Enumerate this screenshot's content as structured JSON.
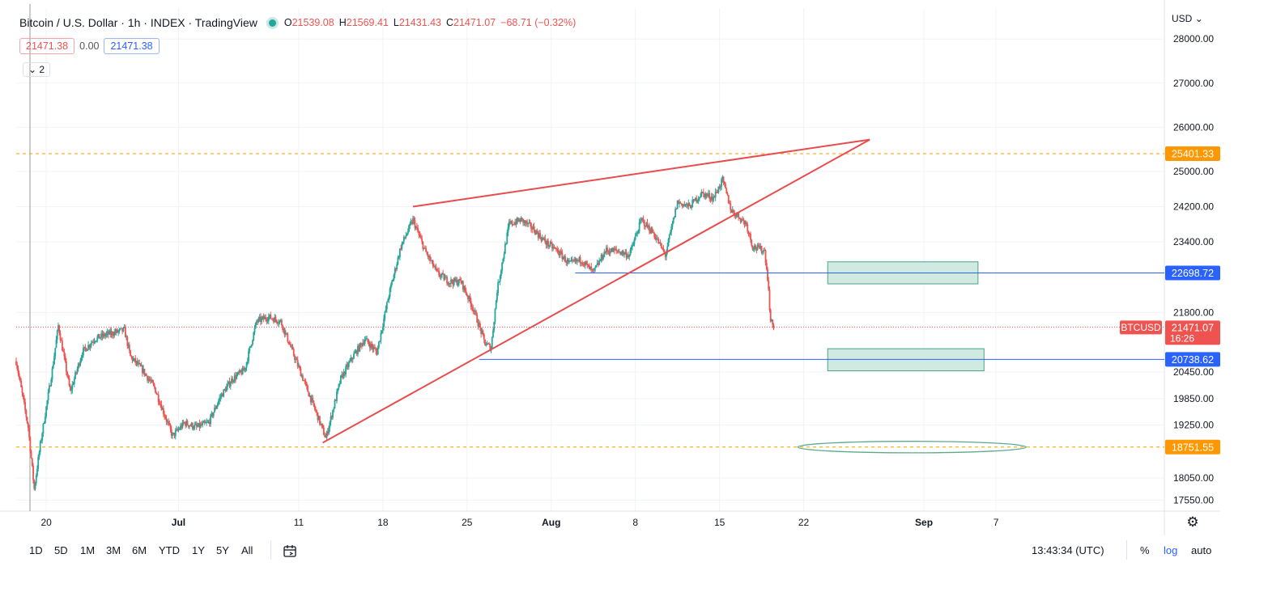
{
  "header": {
    "symbol": "Bitcoin / U.S. Dollar · 1h · INDEX · TradingView",
    "ohlc": {
      "o_label": "O",
      "o": "21539.08",
      "h_label": "H",
      "h": "21569.41",
      "l_label": "L",
      "l": "21431.43",
      "c_label": "C",
      "c": "21471.07",
      "change": "−68.71 (−0.32%)"
    },
    "bid": "21471.38",
    "spread": "0.00",
    "ask": "21471.38",
    "collapse_label": "2",
    "currency": "USD"
  },
  "bottom_bar": {
    "timeframes": [
      "1D",
      "5D",
      "1M",
      "3M",
      "6M",
      "YTD",
      "1Y",
      "5Y",
      "All"
    ],
    "clock": "13:43:34 (UTC)",
    "percent": "%",
    "log": "log",
    "auto": "auto"
  },
  "chart_data": {
    "type": "candlestick",
    "symbol": "BTCUSD",
    "interval": "1h",
    "y_axis": {
      "ticks": [
        17550,
        18050,
        19250,
        19850,
        20450,
        21800,
        23400,
        24200,
        25000,
        26000,
        27000,
        28000
      ],
      "range": [
        17300,
        28700
      ]
    },
    "x_axis": {
      "ticks": [
        {
          "label": "20",
          "date": "2022-06-20"
        },
        {
          "label": "Jul",
          "date": "2022-07-01"
        },
        {
          "label": "11",
          "date": "2022-07-11"
        },
        {
          "label": "18",
          "date": "2022-07-18"
        },
        {
          "label": "25",
          "date": "2022-07-25"
        },
        {
          "label": "Aug",
          "date": "2022-08-01"
        },
        {
          "label": "8",
          "date": "2022-08-08"
        },
        {
          "label": "15",
          "date": "2022-08-15"
        },
        {
          "label": "22",
          "date": "2022-08-22"
        },
        {
          "label": "Sep",
          "date": "2022-09-01"
        },
        {
          "label": "7",
          "date": "2022-09-07"
        }
      ],
      "range": [
        "2022-06-17T12:00",
        "2022-09-21T00:00"
      ]
    },
    "price_path": [
      [
        "2022-06-17T12:00",
        20700
      ],
      [
        "2022-06-18T12:00",
        19200
      ],
      [
        "2022-06-19T00:00",
        17800
      ],
      [
        "2022-06-19T12:00",
        18800
      ],
      [
        "2022-06-20T12:00",
        20500
      ],
      [
        "2022-06-21T00:00",
        21500
      ],
      [
        "2022-06-22T00:00",
        20000
      ],
      [
        "2022-06-23T00:00",
        20900
      ],
      [
        "2022-06-24T00:00",
        21200
      ],
      [
        "2022-06-25T00:00",
        21300
      ],
      [
        "2022-06-26T12:00",
        21400
      ],
      [
        "2022-06-27T00:00",
        20800
      ],
      [
        "2022-06-28T00:00",
        20500
      ],
      [
        "2022-06-29T00:00",
        20100
      ],
      [
        "2022-06-30T12:00",
        19000
      ],
      [
        "2022-07-01T12:00",
        19300
      ],
      [
        "2022-07-02T12:00",
        19200
      ],
      [
        "2022-07-03T12:00",
        19300
      ],
      [
        "2022-07-04T12:00",
        19900
      ],
      [
        "2022-07-05T12:00",
        20300
      ],
      [
        "2022-07-06T12:00",
        20500
      ],
      [
        "2022-07-07T12:00",
        21600
      ],
      [
        "2022-07-08T12:00",
        21700
      ],
      [
        "2022-07-09T12:00",
        21600
      ],
      [
        "2022-07-10T12:00",
        20900
      ],
      [
        "2022-07-11T12:00",
        20200
      ],
      [
        "2022-07-12T12:00",
        19500
      ],
      [
        "2022-07-13T06:00",
        18950
      ],
      [
        "2022-07-14T12:00",
        20300
      ],
      [
        "2022-07-15T12:00",
        20800
      ],
      [
        "2022-07-16T12:00",
        21200
      ],
      [
        "2022-07-17T12:00",
        20900
      ],
      [
        "2022-07-18T12:00",
        22200
      ],
      [
        "2022-07-19T12:00",
        23300
      ],
      [
        "2022-07-20T12:00",
        23900
      ],
      [
        "2022-07-21T12:00",
        23200
      ],
      [
        "2022-07-22T12:00",
        22700
      ],
      [
        "2022-07-23T12:00",
        22500
      ],
      [
        "2022-07-24T12:00",
        22500
      ],
      [
        "2022-07-25T12:00",
        21900
      ],
      [
        "2022-07-26T12:00",
        21100
      ],
      [
        "2022-07-27T00:00",
        21000
      ],
      [
        "2022-07-27T12:00",
        22300
      ],
      [
        "2022-07-28T12:00",
        23800
      ],
      [
        "2022-07-29T12:00",
        23900
      ],
      [
        "2022-07-30T12:00",
        23700
      ],
      [
        "2022-07-31T12:00",
        23400
      ],
      [
        "2022-08-01T12:00",
        23200
      ],
      [
        "2022-08-02T12:00",
        22900
      ],
      [
        "2022-08-03T12:00",
        23000
      ],
      [
        "2022-08-04T12:00",
        22700
      ],
      [
        "2022-08-05T12:00",
        23200
      ],
      [
        "2022-08-06T12:00",
        23200
      ],
      [
        "2022-08-07T12:00",
        23100
      ],
      [
        "2022-08-08T12:00",
        23900
      ],
      [
        "2022-08-09T12:00",
        23600
      ],
      [
        "2022-08-10T12:00",
        23100
      ],
      [
        "2022-08-11T12:00",
        24300
      ],
      [
        "2022-08-12T12:00",
        24200
      ],
      [
        "2022-08-13T12:00",
        24500
      ],
      [
        "2022-08-14T12:00",
        24400
      ],
      [
        "2022-08-15T06:00",
        24800
      ],
      [
        "2022-08-16T00:00",
        24100
      ],
      [
        "2022-08-16T12:00",
        24000
      ],
      [
        "2022-08-17T06:00",
        23800
      ],
      [
        "2022-08-17T18:00",
        23300
      ],
      [
        "2022-08-18T18:00",
        23200
      ],
      [
        "2022-08-19T00:00",
        22600
      ],
      [
        "2022-08-19T06:00",
        21600
      ],
      [
        "2022-08-19T13:00",
        21471
      ]
    ],
    "last_price": 21471.07,
    "countdown": "16:26",
    "horizontal_lines": [
      {
        "price": 25401.33,
        "label": "25401.33",
        "style": "dashed",
        "color": "#ff9800"
      },
      {
        "price": 22698.72,
        "label": "22698.72",
        "style": "solid",
        "color": "#2962ff",
        "start": "2022-08-03"
      },
      {
        "price": 20738.62,
        "label": "20738.62",
        "style": "solid",
        "color": "#2962ff",
        "start": "2022-07-26"
      },
      {
        "price": 18751.55,
        "label": "18751.55",
        "style": "dashed",
        "color": "#ff9800"
      }
    ],
    "trendlines": [
      {
        "from": [
          "2022-07-20T12:00",
          24200
        ],
        "to": [
          "2022-08-27T12:00",
          25720
        ]
      },
      {
        "from": [
          "2022-07-13T00:00",
          18850
        ],
        "to": [
          "2022-08-27T12:00",
          25720
        ]
      }
    ],
    "zones": [
      {
        "from": "2022-08-24T00:00",
        "to": "2022-09-05T12:00",
        "top": 22950,
        "bottom": 22450
      },
      {
        "from": "2022-08-24T00:00",
        "to": "2022-09-06T00:00",
        "top": 20980,
        "bottom": 20480
      }
    ],
    "ellipse": {
      "center": [
        "2022-08-31T00:00",
        18751.55
      ],
      "half_width_days": 9.5,
      "half_height": 130
    },
    "colors": {
      "up": "#26a69a",
      "down": "#ef5350",
      "trend": "#e84c4c",
      "zone_fill": "#c8e6dc",
      "zone_stroke": "#4aa38a",
      "ellipse": "#5aaa8c"
    }
  }
}
